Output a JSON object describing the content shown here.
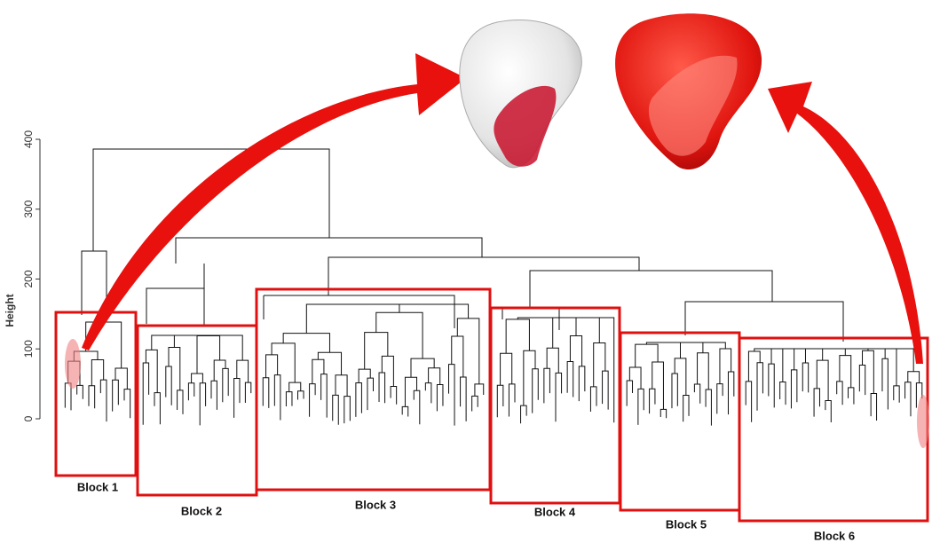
{
  "axis": {
    "label": "Height",
    "range": [
      0,
      400
    ],
    "ticks": [
      0,
      100,
      200,
      300,
      400
    ]
  },
  "blocks": [
    "Block 1",
    "Block 2",
    "Block 3",
    "Block 4",
    "Block 5",
    "Block 6"
  ]
}
